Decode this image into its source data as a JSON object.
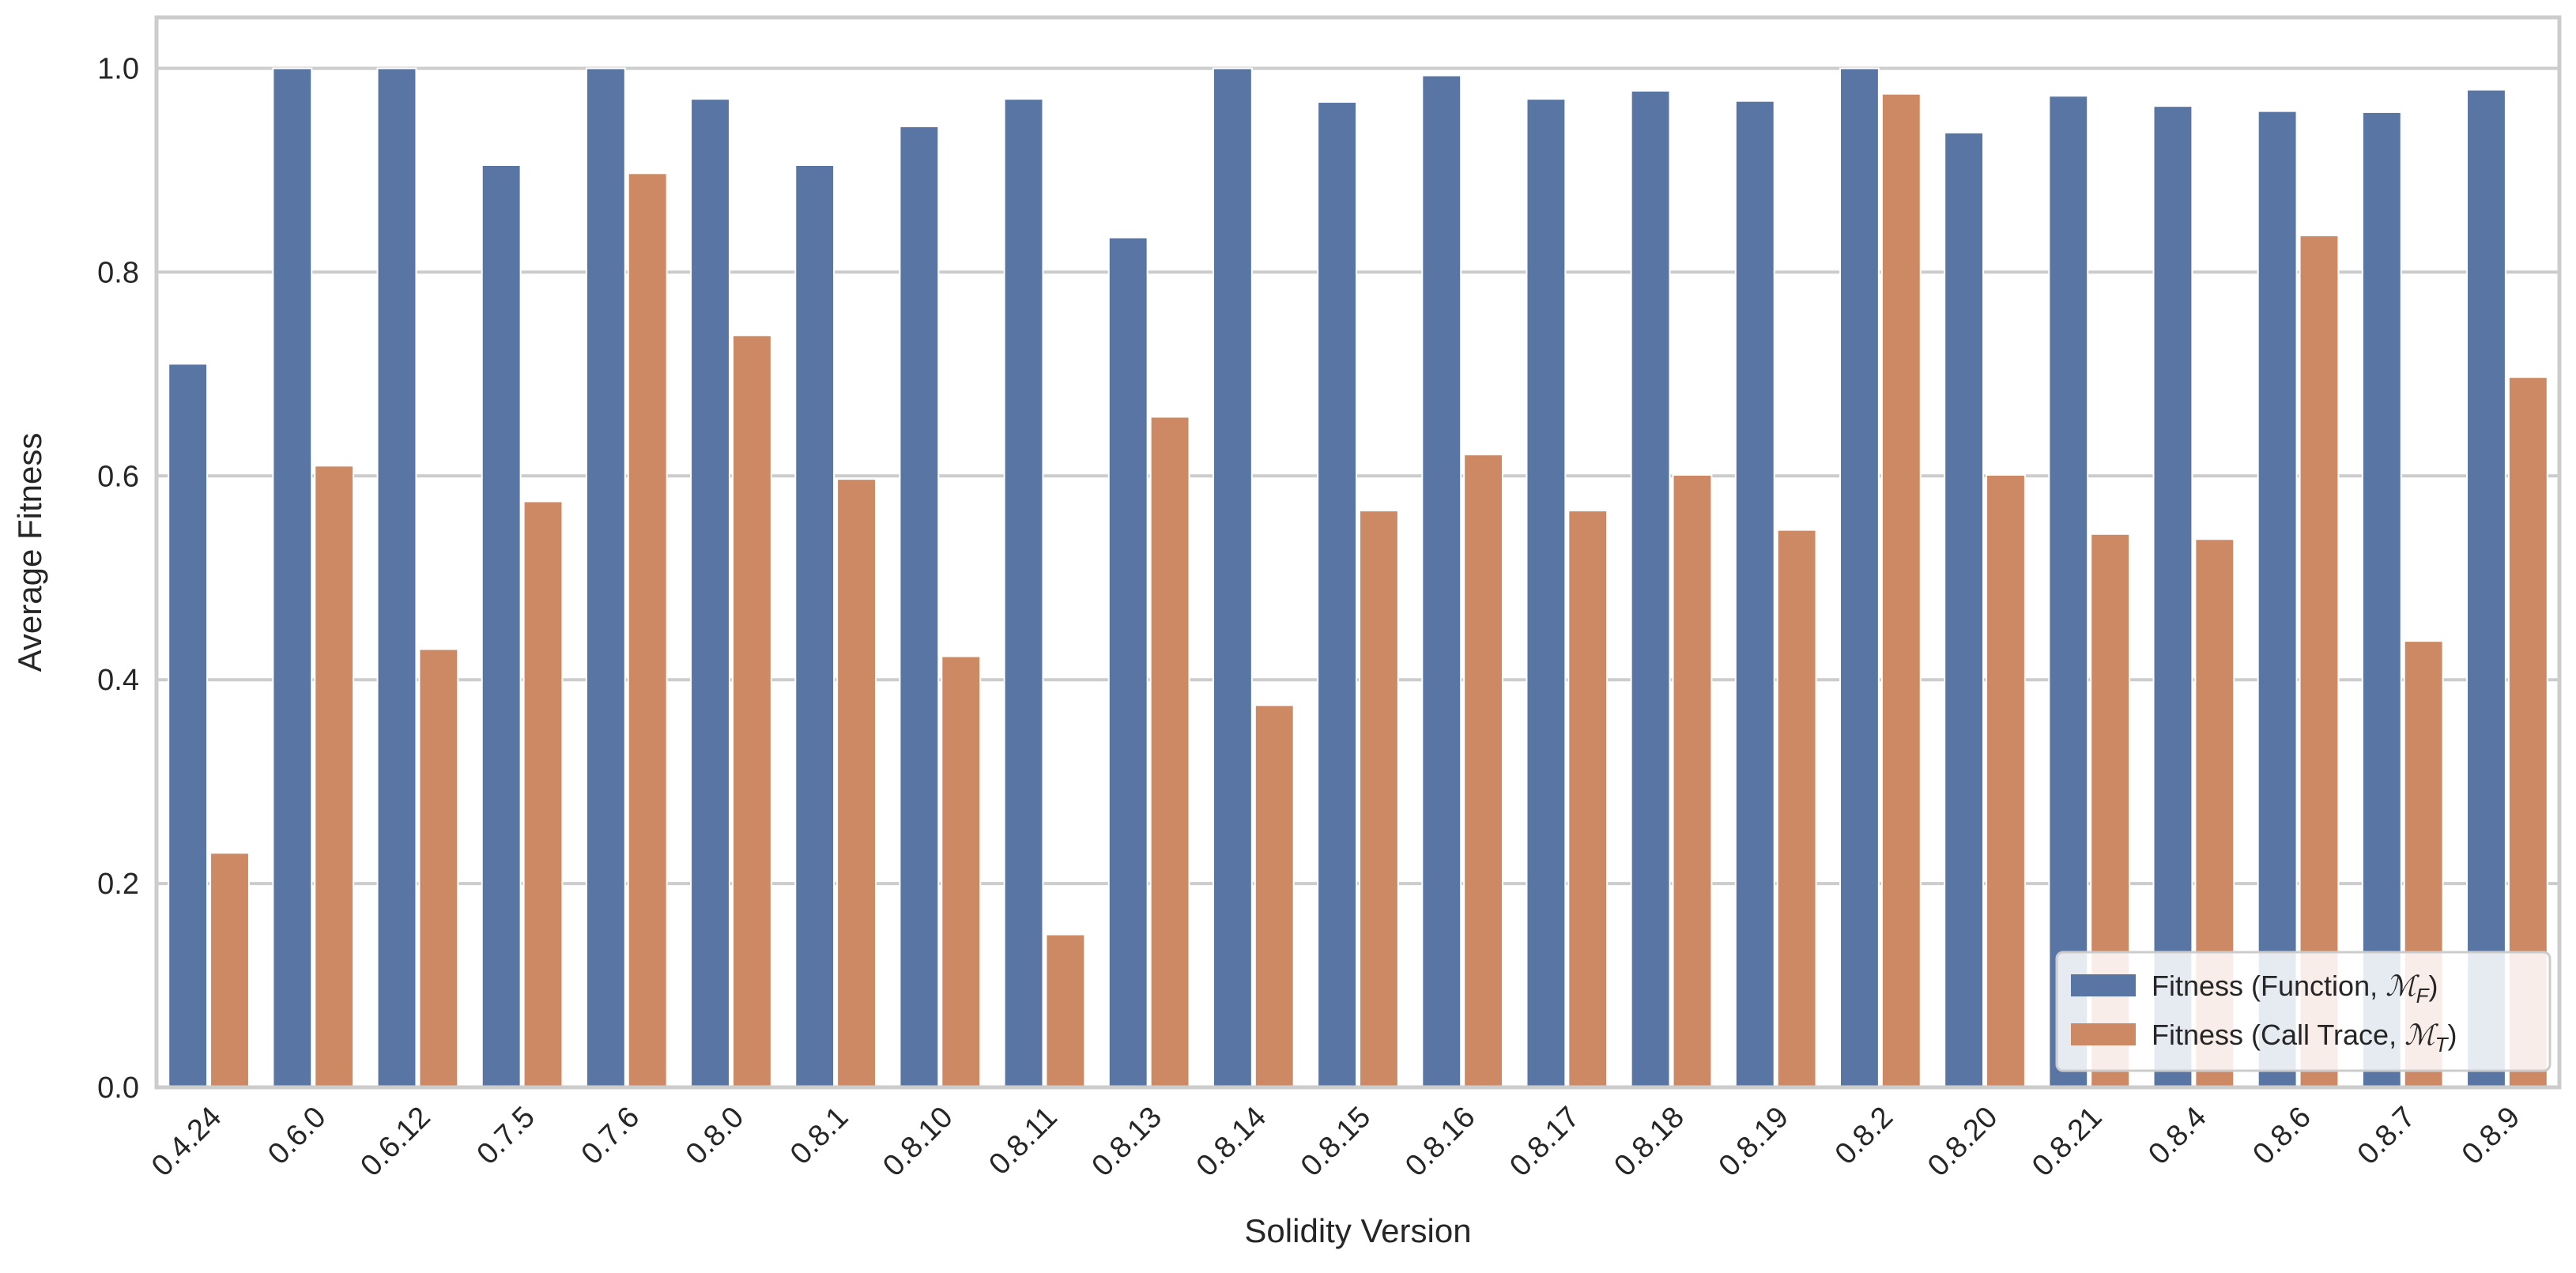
{
  "chart_data": {
    "type": "bar",
    "title": "",
    "xlabel": "Solidity Version",
    "ylabel": "Average Fitness",
    "ylim": [
      0,
      1.05
    ],
    "yticks": [
      "0.0",
      "0.2",
      "0.4",
      "0.6",
      "0.8",
      "1.0"
    ],
    "grid": "horizontal",
    "legend_position": "bottom-right",
    "categories": [
      "0.4.24",
      "0.6.0",
      "0.6.12",
      "0.7.5",
      "0.7.6",
      "0.8.0",
      "0.8.1",
      "0.8.10",
      "0.8.11",
      "0.8.13",
      "0.8.14",
      "0.8.15",
      "0.8.16",
      "0.8.17",
      "0.8.18",
      "0.8.19",
      "0.8.2",
      "0.8.20",
      "0.8.21",
      "0.8.4",
      "0.8.6",
      "0.8.7",
      "0.8.9"
    ],
    "series": [
      {
        "name": "Fitness (Function, ℳF)",
        "legend_main": "Fitness (Function, ",
        "legend_sub": "F",
        "color": "#5975a4",
        "values": [
          0.71,
          1.0,
          1.0,
          0.905,
          1.0,
          0.97,
          0.905,
          0.943,
          0.97,
          0.834,
          1.0,
          0.967,
          0.993,
          0.97,
          0.978,
          0.968,
          1.0,
          0.937,
          0.973,
          0.963,
          0.958,
          0.957,
          0.979
        ]
      },
      {
        "name": "Fitness (Call Trace, ℳT)",
        "legend_main": "Fitness (Call Trace, ",
        "legend_sub": "T",
        "color": "#cc8963",
        "values": [
          0.23,
          0.61,
          0.43,
          0.575,
          0.897,
          0.738,
          0.597,
          0.423,
          0.15,
          0.658,
          0.375,
          0.566,
          0.621,
          0.566,
          0.601,
          0.547,
          0.975,
          0.601,
          0.543,
          0.538,
          0.836,
          0.438,
          0.697
        ]
      }
    ]
  }
}
